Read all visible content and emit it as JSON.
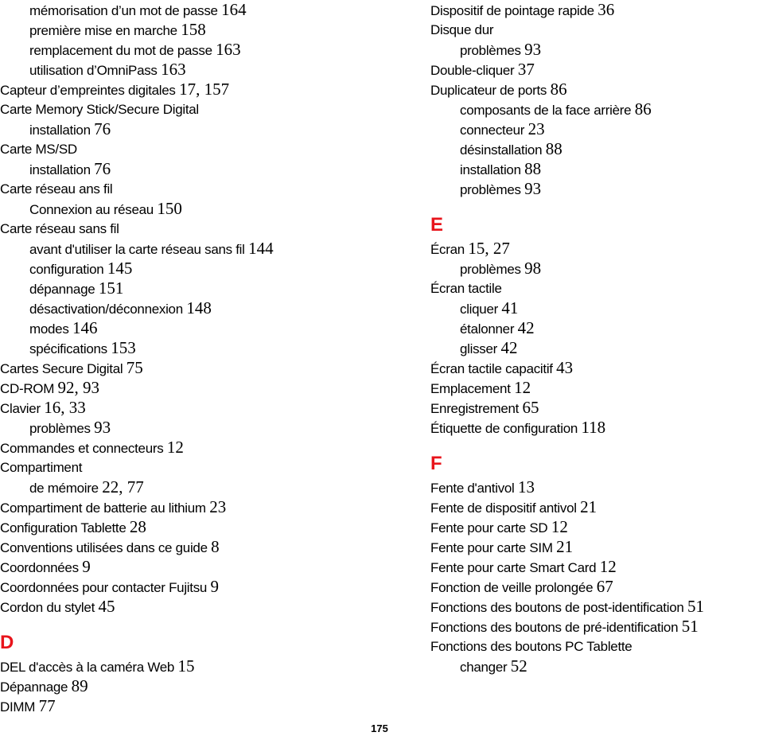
{
  "left_column": [
    {
      "type": "entry",
      "level": 1,
      "text": "mémorisation d’un mot de passe",
      "pages": "164"
    },
    {
      "type": "entry",
      "level": 1,
      "text": "première mise en marche",
      "pages": "158"
    },
    {
      "type": "entry",
      "level": 1,
      "text": "remplacement du mot de passe",
      "pages": "163"
    },
    {
      "type": "entry",
      "level": 1,
      "text": "utilisation d’OmniPass",
      "pages": "163"
    },
    {
      "type": "entry",
      "level": 0,
      "text": "Capteur d’empreintes digitales",
      "pages": "17, 157"
    },
    {
      "type": "entry",
      "level": 0,
      "text": "Carte Memory Stick/Secure Digital",
      "pages": ""
    },
    {
      "type": "entry",
      "level": 1,
      "text": "installation",
      "pages": "76"
    },
    {
      "type": "entry",
      "level": 0,
      "text": "Carte MS/SD",
      "pages": ""
    },
    {
      "type": "entry",
      "level": 1,
      "text": "installation",
      "pages": "76"
    },
    {
      "type": "entry",
      "level": 0,
      "text": "Carte réseau ans fil",
      "pages": ""
    },
    {
      "type": "entry",
      "level": 1,
      "text": "Connexion au réseau",
      "pages": "150"
    },
    {
      "type": "entry",
      "level": 0,
      "text": "Carte réseau sans fil",
      "pages": ""
    },
    {
      "type": "entry",
      "level": 1,
      "text": "avant d'utiliser la carte réseau sans fil",
      "pages": "144"
    },
    {
      "type": "entry",
      "level": 1,
      "text": "configuration",
      "pages": "145"
    },
    {
      "type": "entry",
      "level": 1,
      "text": "dépannage",
      "pages": "151"
    },
    {
      "type": "entry",
      "level": 1,
      "text": "désactivation/déconnexion",
      "pages": "148"
    },
    {
      "type": "entry",
      "level": 1,
      "text": "modes",
      "pages": "146"
    },
    {
      "type": "entry",
      "level": 1,
      "text": "spécifications",
      "pages": "153"
    },
    {
      "type": "entry",
      "level": 0,
      "text": "Cartes Secure Digital",
      "pages": "75"
    },
    {
      "type": "entry",
      "level": 0,
      "text": "CD-ROM",
      "pages": "92, 93"
    },
    {
      "type": "entry",
      "level": 0,
      "text": "Clavier",
      "pages": "16, 33"
    },
    {
      "type": "entry",
      "level": 1,
      "text": "problèmes",
      "pages": "93"
    },
    {
      "type": "entry",
      "level": 0,
      "text": "Commandes et connecteurs",
      "pages": "12"
    },
    {
      "type": "entry",
      "level": 0,
      "text": "Compartiment",
      "pages": ""
    },
    {
      "type": "entry",
      "level": 1,
      "text": "de mémoire",
      "pages": "22, 77"
    },
    {
      "type": "entry",
      "level": 0,
      "text": "Compartiment de batterie au lithium",
      "pages": "23"
    },
    {
      "type": "entry",
      "level": 0,
      "text": "Configuration Tablette",
      "pages": "28"
    },
    {
      "type": "entry",
      "level": 0,
      "text": "Conventions utilisées dans ce guide",
      "pages": "8"
    },
    {
      "type": "entry",
      "level": 0,
      "text": "Coordonnées",
      "pages": "9"
    },
    {
      "type": "entry",
      "level": 0,
      "text": "Coordonnées pour contacter Fujitsu",
      "pages": "9"
    },
    {
      "type": "entry",
      "level": 0,
      "text": "Cordon du stylet",
      "pages": "45"
    },
    {
      "type": "letter",
      "text": "D"
    },
    {
      "type": "entry",
      "level": 0,
      "text": "DEL d'accès à la caméra Web",
      "pages": "15"
    },
    {
      "type": "entry",
      "level": 0,
      "text": "Dépannage",
      "pages": "89"
    },
    {
      "type": "entry",
      "level": 0,
      "text": "DIMM",
      "pages": "77"
    }
  ],
  "right_column": [
    {
      "type": "entry",
      "level": 0,
      "text": "Dispositif de pointage rapide",
      "pages": "36"
    },
    {
      "type": "entry",
      "level": 0,
      "text": "Disque dur",
      "pages": ""
    },
    {
      "type": "entry",
      "level": 1,
      "text": "problèmes",
      "pages": "93"
    },
    {
      "type": "entry",
      "level": 0,
      "text": "Double-cliquer",
      "pages": "37"
    },
    {
      "type": "entry",
      "level": 0,
      "text": "Duplicateur de ports",
      "pages": "86"
    },
    {
      "type": "entry",
      "level": 1,
      "text": "composants de la face arrière",
      "pages": "86"
    },
    {
      "type": "entry",
      "level": 1,
      "text": "connecteur",
      "pages": "23"
    },
    {
      "type": "entry",
      "level": 1,
      "text": "désinstallation",
      "pages": "88"
    },
    {
      "type": "entry",
      "level": 1,
      "text": "installation",
      "pages": "88"
    },
    {
      "type": "entry",
      "level": 1,
      "text": "problèmes",
      "pages": "93"
    },
    {
      "type": "letter",
      "text": "E"
    },
    {
      "type": "entry",
      "level": 0,
      "text": "Écran",
      "pages": "15, 27"
    },
    {
      "type": "entry",
      "level": 1,
      "text": "problèmes",
      "pages": "98"
    },
    {
      "type": "entry",
      "level": 0,
      "text": "Écran tactile",
      "pages": ""
    },
    {
      "type": "entry",
      "level": 1,
      "text": "cliquer",
      "pages": "41"
    },
    {
      "type": "entry",
      "level": 1,
      "text": "étalonner",
      "pages": "42"
    },
    {
      "type": "entry",
      "level": 1,
      "text": "glisser",
      "pages": "42"
    },
    {
      "type": "entry",
      "level": 0,
      "text": "Écran tactile capacitif",
      "pages": "43"
    },
    {
      "type": "entry",
      "level": 0,
      "text": "Emplacement",
      "pages": "12"
    },
    {
      "type": "entry",
      "level": 0,
      "text": "Enregistrement",
      "pages": "65"
    },
    {
      "type": "entry",
      "level": 0,
      "text": "Étiquette de configuration",
      "pages": "118"
    },
    {
      "type": "letter",
      "text": "F"
    },
    {
      "type": "entry",
      "level": 0,
      "text": "Fente d'antivol",
      "pages": "13"
    },
    {
      "type": "entry",
      "level": 0,
      "text": "Fente de dispositif antivol",
      "pages": "21"
    },
    {
      "type": "entry",
      "level": 0,
      "text": "Fente pour carte SD",
      "pages": "12"
    },
    {
      "type": "entry",
      "level": 0,
      "text": "Fente pour carte SIM",
      "pages": "21"
    },
    {
      "type": "entry",
      "level": 0,
      "text": "Fente pour carte Smart Card",
      "pages": "12"
    },
    {
      "type": "entry",
      "level": 0,
      "text": "Fonction de veille prolongée",
      "pages": "67"
    },
    {
      "type": "entry",
      "level": 0,
      "text": "Fonctions des boutons de post-identification",
      "pages": "51"
    },
    {
      "type": "entry",
      "level": 0,
      "text": "Fonctions des boutons de pré-identification",
      "pages": "51"
    },
    {
      "type": "entry",
      "level": 0,
      "text": "Fonctions des boutons PC Tablette",
      "pages": ""
    },
    {
      "type": "entry",
      "level": 1,
      "text": "changer",
      "pages": "52"
    }
  ],
  "page_number": "175",
  "colors": {
    "section_letter": "#e8141b",
    "text": "#000000"
  }
}
